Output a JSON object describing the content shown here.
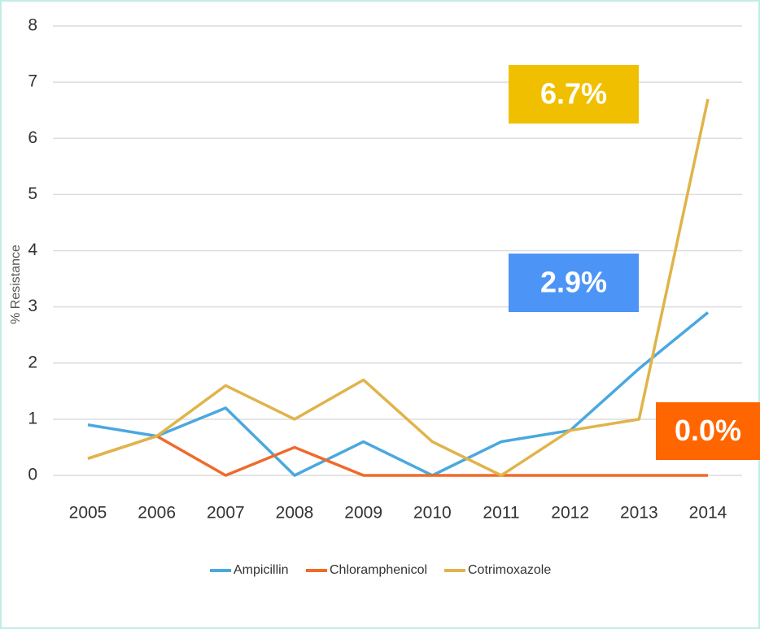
{
  "chart_data": {
    "type": "line",
    "y_label": "% Resistance",
    "categories": [
      "2005",
      "2006",
      "2007",
      "2008",
      "2009",
      "2010",
      "2011",
      "2012",
      "2013",
      "2014"
    ],
    "series": [
      {
        "name": "Ampicillin",
        "color": "#4aa8e0",
        "values": [
          0.9,
          0.7,
          1.2,
          0,
          0.6,
          0,
          0.6,
          0.8,
          1.9,
          2.9
        ]
      },
      {
        "name": "Chloramphenicol",
        "color": "#f06a2a",
        "values": [
          0.3,
          0.7,
          0,
          0.5,
          0,
          0,
          0,
          0,
          0,
          0
        ]
      },
      {
        "name": "Cotrimoxazole",
        "color": "#e0b44a",
        "values": [
          0.3,
          0.7,
          1.6,
          1.0,
          1.7,
          0.6,
          0,
          0.8,
          1.0,
          6.7
        ]
      }
    ],
    "ylim": [
      0,
      8
    ],
    "yticks": [
      0,
      1,
      2,
      3,
      4,
      5,
      6,
      7,
      8
    ],
    "grid": true,
    "legend": "bottom",
    "annotations": [
      {
        "text": "6.7%",
        "color": "#f0c000"
      },
      {
        "text": "2.9%",
        "color": "#4d94f7"
      },
      {
        "text": "0.0%",
        "color": "#ff6600"
      }
    ]
  }
}
